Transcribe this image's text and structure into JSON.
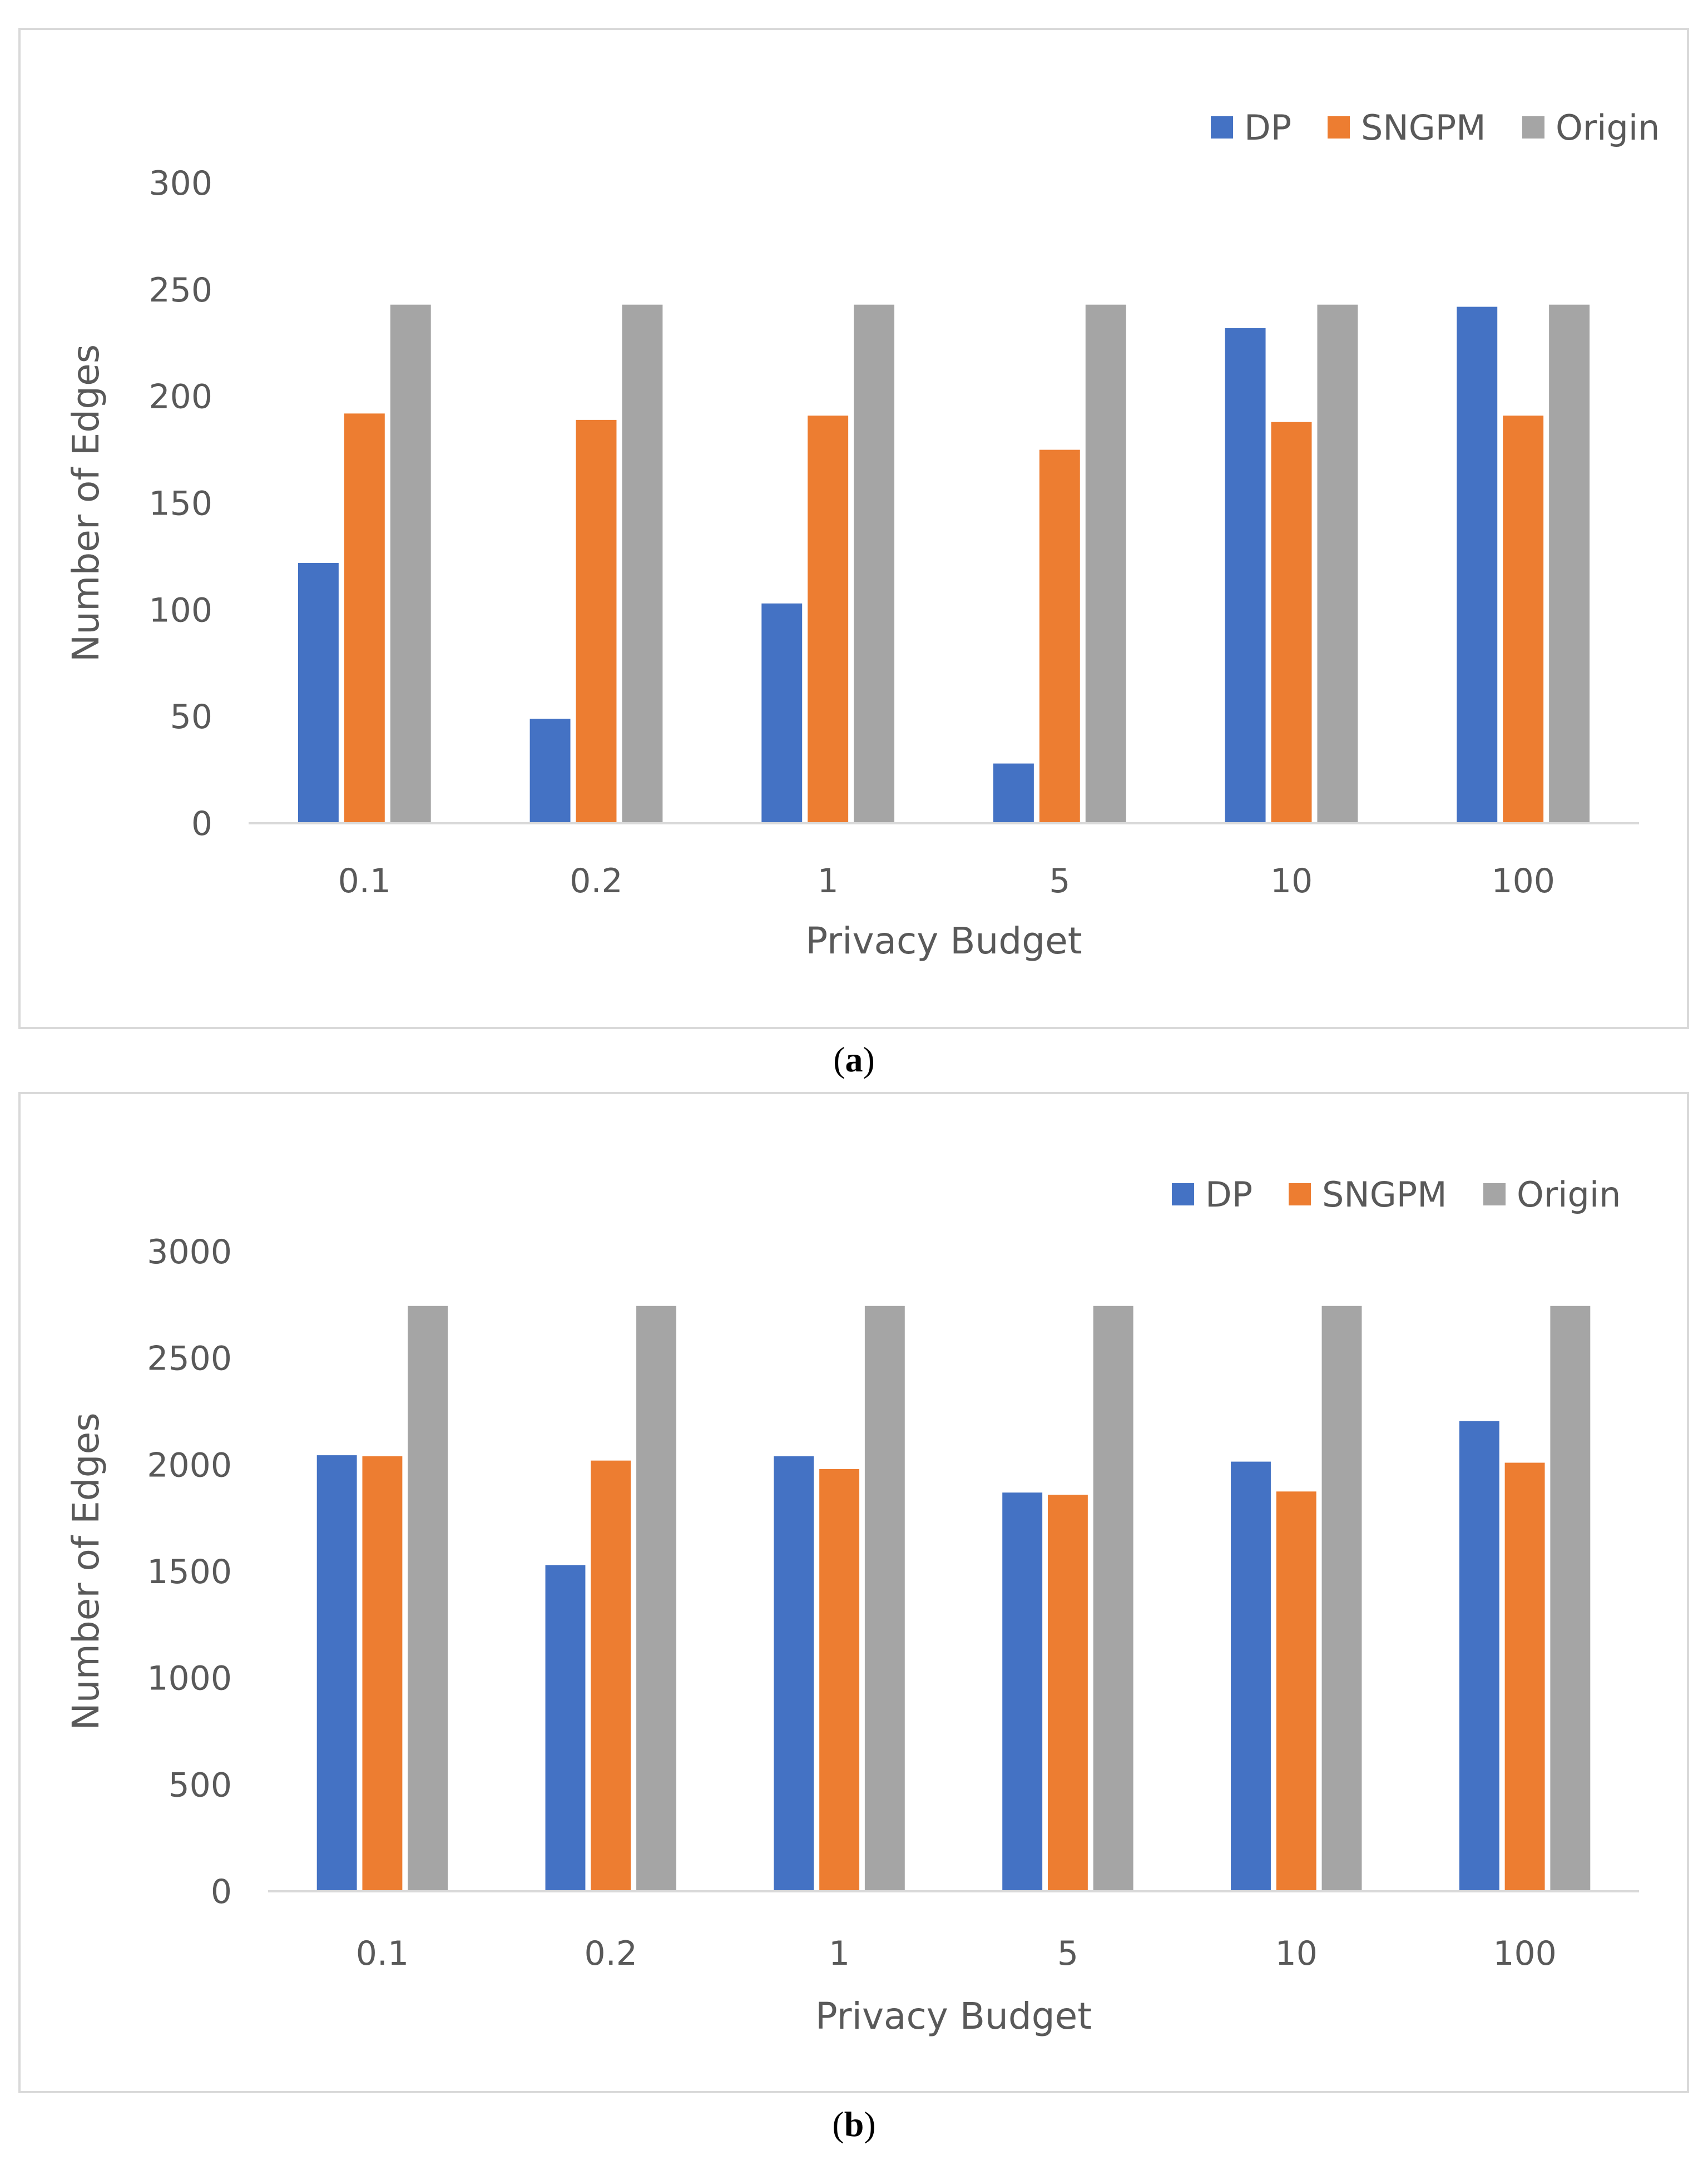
{
  "colors": {
    "DP": "#4472c4",
    "SNGPM": "#ed7d31",
    "Origin": "#a5a5a5",
    "axis": "#d9d9d9",
    "text": "#595959"
  },
  "chart_data": [
    {
      "type": "bar",
      "panel_label": "a",
      "categories": [
        "0.1",
        "0.2",
        "1",
        "5",
        "10",
        "100"
      ],
      "series": [
        {
          "name": "DP",
          "values": [
            122,
            49,
            103,
            28,
            232,
            242
          ]
        },
        {
          "name": "SNGPM",
          "values": [
            192,
            189,
            191,
            175,
            188,
            191
          ]
        },
        {
          "name": "Origin",
          "values": [
            243,
            243,
            243,
            243,
            243,
            243
          ]
        }
      ],
      "xlabel": "Privacy Budget",
      "ylabel": "Number of Edges",
      "ylim": [
        0,
        300
      ],
      "yticks": [
        "0",
        "50",
        "100",
        "150",
        "200",
        "250",
        "300"
      ],
      "grid": false,
      "legend": "top-right"
    },
    {
      "type": "bar",
      "panel_label": "b",
      "categories": [
        "0.1",
        "0.2",
        "1",
        "5",
        "10",
        "100"
      ],
      "series": [
        {
          "name": "DP",
          "values": [
            2045,
            1530,
            2040,
            1870,
            2015,
            2205
          ]
        },
        {
          "name": "SNGPM",
          "values": [
            2040,
            2020,
            1980,
            1860,
            1875,
            2010
          ]
        },
        {
          "name": "Origin",
          "values": [
            2745,
            2745,
            2745,
            2745,
            2745,
            2745
          ]
        }
      ],
      "xlabel": "Privacy Budget",
      "ylabel": "Number of Edges",
      "ylim": [
        0,
        3000
      ],
      "yticks": [
        "0",
        "500",
        "1000",
        "1500",
        "2000",
        "2500",
        "3000"
      ],
      "grid": false,
      "legend": "top-right"
    }
  ]
}
